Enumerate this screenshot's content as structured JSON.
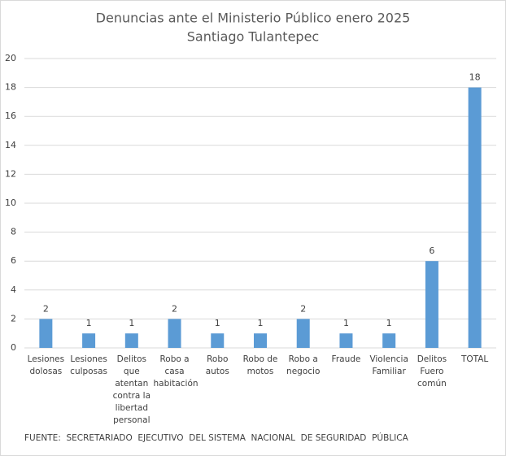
{
  "chart_data": {
    "type": "bar",
    "title": "Denuncias ante el Ministerio Público enero 2025",
    "subtitle": "Santiago Tulantepec",
    "categories": [
      "Lesiones dolosas",
      "Lesiones culposas",
      "Delitos que atentan contra la libertad personal",
      "Robo a casa habitación",
      "Robo autos",
      "Robo de motos",
      "Robo a negocio",
      "Fraude",
      "Violencia Familiar",
      "Delitos Fuero común",
      "TOTAL"
    ],
    "values": [
      2,
      1,
      1,
      2,
      1,
      1,
      2,
      1,
      1,
      6,
      18
    ],
    "color": "#5b9bd5",
    "ylim": [
      0,
      20
    ],
    "yticks": [
      0,
      2,
      4,
      6,
      8,
      10,
      12,
      14,
      16,
      18,
      20
    ],
    "grid": true,
    "source": "FUENTE:  SECRETARIADO  EJECUTIVO  DEL SISTEMA  NACIONAL  DE SEGURIDAD  PÚBLICA"
  }
}
